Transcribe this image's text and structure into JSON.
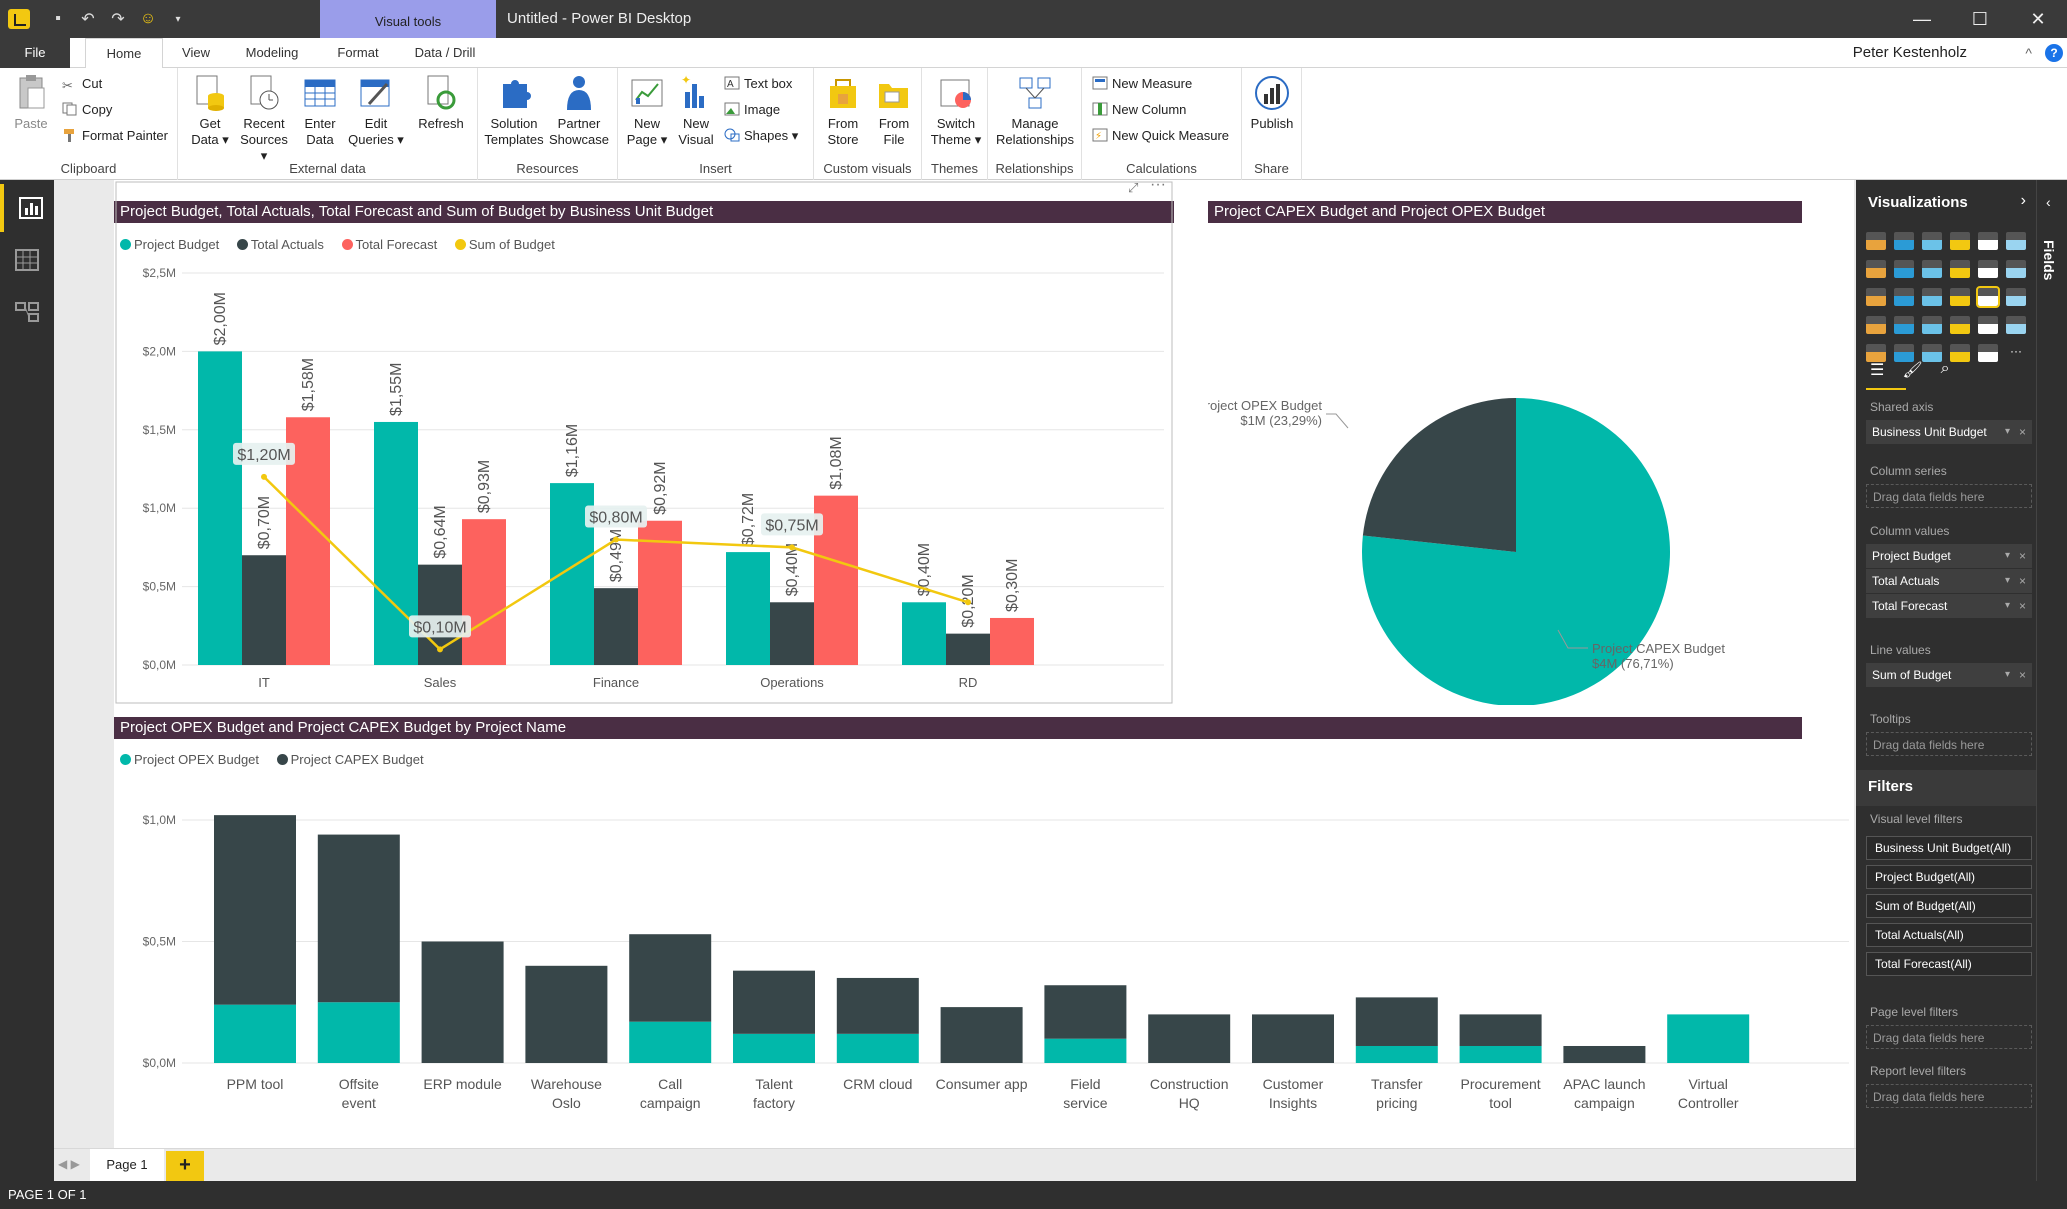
{
  "window": {
    "title": "Untitled - Power BI Desktop",
    "context_tab": "Visual tools",
    "buttons": [
      "—",
      "☐",
      "✕"
    ]
  },
  "ribbon_tabs": {
    "file": "File",
    "home": "Home",
    "view": "View",
    "modeling": "Modeling",
    "format": "Format",
    "data_drill": "Data / Drill",
    "user": "Peter Kestenholz",
    "help": "?",
    "collapse": "^"
  },
  "ribbon": {
    "clipboard": {
      "paste": "Paste",
      "cut": "Cut",
      "copy": "Copy",
      "format_painter": "Format Painter",
      "label": "Clipboard"
    },
    "external": {
      "get_data": "Get Data ▾",
      "recent": "Recent Sources ▾",
      "enter": "Enter Data",
      "edit": "Edit Queries ▾",
      "refresh": "Refresh",
      "label": "External data"
    },
    "resources": {
      "solution": "Solution Templates",
      "partner": "Partner Showcase",
      "label": "Resources"
    },
    "insert": {
      "new_page": "New Page ▾",
      "new_visual": "New Visual",
      "text_box": "Text box",
      "image": "Image",
      "shapes": "Shapes ▾",
      "label": "Insert"
    },
    "custom": {
      "from_store": "From Store",
      "from_file": "From File",
      "label": "Custom visuals"
    },
    "themes": {
      "switch": "Switch Theme ▾",
      "label": "Themes"
    },
    "relationships": {
      "manage": "Manage Relationships",
      "label": "Relationships"
    },
    "calculations": {
      "measure": "New Measure",
      "column": "New Column",
      "quick": "New Quick Measure",
      "label": "Calculations"
    },
    "share": {
      "publish": "Publish",
      "label": "Share"
    }
  },
  "colors": {
    "teal": "#01b8aa",
    "dark": "#374649",
    "red": "#fd625e",
    "yellow": "#f2c80f",
    "header": "#4a2e44"
  },
  "chart_data": [
    {
      "type": "bar",
      "title": "Project Budget, Total Actuals, Total Forecast and Sum of Budget by Business Unit Budget",
      "categories": [
        "IT",
        "Sales",
        "Finance",
        "Operations",
        "RD"
      ],
      "series": [
        {
          "name": "Project Budget",
          "values": [
            2.0,
            1.55,
            1.16,
            0.72,
            0.4
          ]
        },
        {
          "name": "Total Actuals",
          "values": [
            0.7,
            0.64,
            0.49,
            0.4,
            0.2
          ]
        },
        {
          "name": "Total Forecast",
          "values": [
            1.58,
            0.93,
            0.92,
            1.08,
            0.3
          ]
        }
      ],
      "line": {
        "name": "Sum of Budget",
        "values": [
          1.2,
          0.1,
          0.8,
          0.75,
          0.4
        ]
      },
      "bar_labels": [
        [
          "$2,00M",
          "$1,55M",
          "$1,16M",
          "$0,72M",
          "$0,40M"
        ],
        [
          "$0,70M",
          "$0,64M",
          "$0,49M",
          "$0,40M",
          "$0,20M"
        ],
        [
          "$1,58M",
          "$0,93M",
          "$0,92M",
          "$1,08M",
          "$0,30M"
        ]
      ],
      "line_labels": [
        "$1,20M",
        "$0,10M",
        "$0,80M",
        "$0,75M",
        ""
      ],
      "yticks": [
        "$0,0M",
        "$0,5M",
        "$1,0M",
        "$1,5M",
        "$2,0M",
        "$2,5M"
      ],
      "ylim": [
        0,
        2.5
      ],
      "legend": "top-left"
    },
    {
      "type": "pie",
      "title": "Project CAPEX Budget and Project OPEX Budget",
      "slices": [
        {
          "name": "Project CAPEX Budget",
          "value": 76.71,
          "label_value": "$4M (76,71%)"
        },
        {
          "name": "Project OPEX Budget",
          "value": 23.29,
          "label_value": "$1M (23,29%)"
        }
      ]
    },
    {
      "type": "bar",
      "stacked": true,
      "title": "Project OPEX Budget and Project CAPEX Budget by Project Name",
      "categories": [
        "PPM tool",
        "Offsite event",
        "ERP module",
        "Warehouse Oslo",
        "Call campaign",
        "Talent factory",
        "CRM cloud",
        "Consumer app",
        "Field service",
        "Construction HQ",
        "Customer Insights",
        "Transfer pricing",
        "Procurement tool",
        "APAC launch campaign",
        "Virtual Controller"
      ],
      "series": [
        {
          "name": "Project OPEX Budget",
          "values": [
            0.24,
            0.25,
            0,
            0,
            0.17,
            0.12,
            0.12,
            0,
            0.1,
            0,
            0,
            0.07,
            0.07,
            0,
            0.2
          ]
        },
        {
          "name": "Project CAPEX Budget",
          "values": [
            0.78,
            0.69,
            0.5,
            0.4,
            0.36,
            0.26,
            0.23,
            0.23,
            0.22,
            0.2,
            0.2,
            0.2,
            0.13,
            0.07,
            0
          ]
        }
      ],
      "yticks": [
        "$0,0M",
        "$0,5M",
        "$1,0M"
      ],
      "ylim": [
        0,
        1.05
      ],
      "legend": "top-left"
    }
  ],
  "legends": {
    "top": [
      "Project Budget",
      "Total Actuals",
      "Total Forecast",
      "Sum of Budget"
    ],
    "bottom": [
      "Project OPEX Budget",
      "Project CAPEX Budget"
    ]
  },
  "viz_pane": {
    "title": "Visualizations",
    "shared_axis_label": "Shared axis",
    "shared_axis_field": "Business Unit Budget",
    "column_series_label": "Column series",
    "column_values_label": "Column values",
    "column_values": [
      "Project Budget",
      "Total Actuals",
      "Total Forecast"
    ],
    "line_values_label": "Line values",
    "line_value": "Sum of Budget",
    "tooltips_label": "Tooltips",
    "drag_hint": "Drag data fields here"
  },
  "filters": {
    "title": "Filters",
    "visual_level_label": "Visual level filters",
    "visual_level": [
      "Business Unit Budget(All)",
      "Project Budget(All)",
      "Sum of Budget(All)",
      "Total Actuals(All)",
      "Total Forecast(All)"
    ],
    "page_level_label": "Page level filters",
    "report_level_label": "Report level filters"
  },
  "fields_pane": {
    "label": "Fields"
  },
  "page_tabs": {
    "page1": "Page 1",
    "add": "+"
  },
  "status": {
    "text": "PAGE 1 OF 1"
  }
}
